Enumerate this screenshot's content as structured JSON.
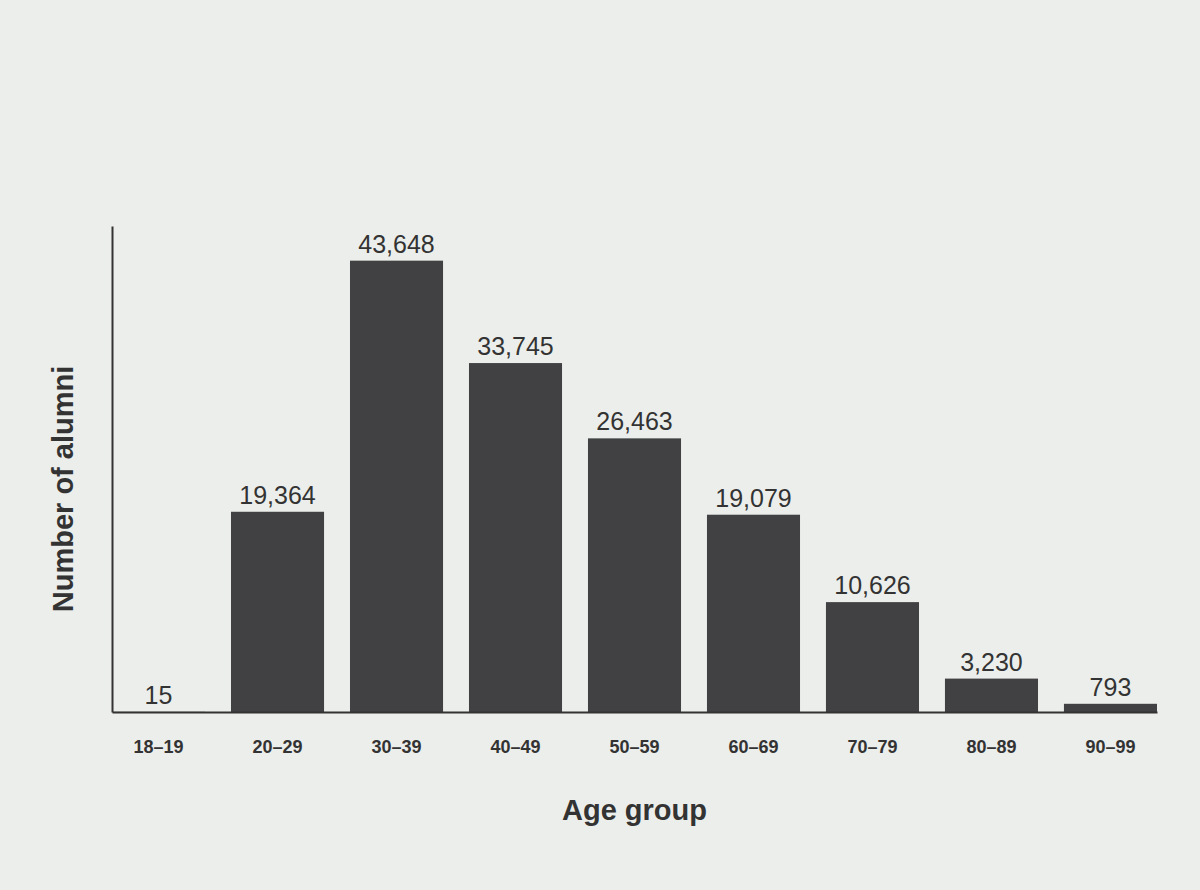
{
  "chart_data": {
    "type": "bar",
    "x_label": "Age group",
    "y_label": "Number of alumni",
    "categories": [
      "18–19",
      "20–29",
      "30–39",
      "40–49",
      "50–59",
      "60–69",
      "70–79",
      "80–89",
      "90–99"
    ],
    "values": [
      15,
      19364,
      43648,
      33745,
      26463,
      19079,
      10626,
      3230,
      793
    ],
    "value_labels": [
      "15",
      "19,364",
      "43,648",
      "33,745",
      "26,463",
      "19,079",
      "10,626",
      "3,230",
      "793"
    ],
    "color": "#414042",
    "ylim": [
      0,
      47000
    ],
    "data_labels": true,
    "tick_labels": "x",
    "grid": false
  }
}
